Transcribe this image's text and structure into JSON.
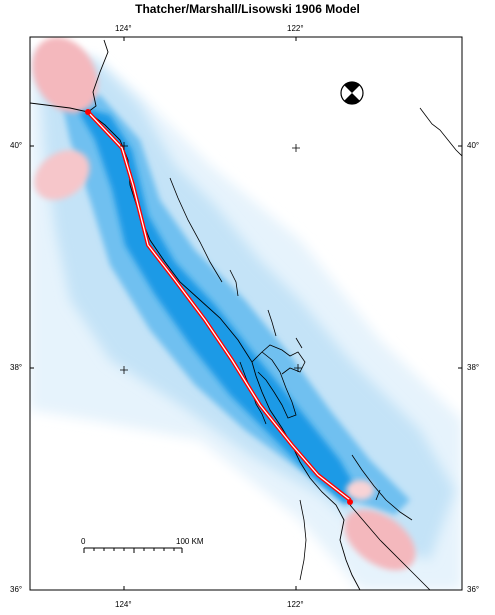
{
  "title": "Thatcher/Marshall/Lisowski 1906 Model",
  "top_ticks": [
    "124°",
    "122°"
  ],
  "bottom_ticks": [
    "124°",
    "122°"
  ],
  "left_ticks": [
    "40°",
    "38°",
    "36°"
  ],
  "right_ticks": [
    "40°",
    "38°",
    "36°"
  ],
  "scale_bar": {
    "start_label": "0",
    "end_label": "100 KM"
  },
  "icons": {
    "focal_mechanism": "beachball-icon",
    "grid_marker": "plus-icon"
  },
  "colors": {
    "fault_trace": "#ff0000",
    "positive_lobe": "#f4b8bd",
    "negative_deep": "#1c9ae6",
    "negative_mid": "#68bdf0",
    "negative_light": "#bfe0f6",
    "negative_faint": "#e6f3fc"
  }
}
